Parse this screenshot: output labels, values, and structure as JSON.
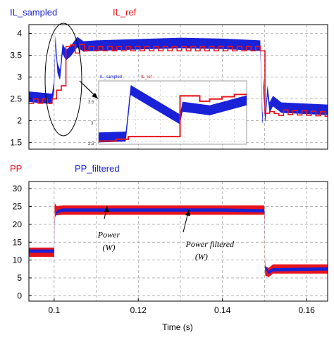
{
  "colors": {
    "blue": "#1a22d8",
    "red": "#e8141c",
    "grid": "#9a9a9a"
  },
  "chart_data": [
    {
      "type": "line",
      "title": "",
      "xlabel": "",
      "ylabel": "",
      "xlim": [
        0.094,
        0.165
      ],
      "ylim": [
        1.35,
        4.2
      ],
      "yticks": [
        "1.5",
        "2",
        "2.5",
        "3",
        "3.5",
        "4"
      ],
      "grid": true,
      "legend": "top-left",
      "series": [
        {
          "name": "IL_sampled",
          "color": "#1a22d8",
          "band": 0.24,
          "x": [
            0.094,
            0.0995,
            0.1,
            0.1003,
            0.1008,
            0.1014,
            0.102,
            0.1028,
            0.104,
            0.1055,
            0.107,
            0.11,
            0.12,
            0.13,
            0.14,
            0.149,
            0.1495,
            0.1497,
            0.1502,
            0.1507,
            0.1512,
            0.152,
            0.154,
            0.165
          ],
          "y": [
            2.55,
            2.5,
            2.8,
            3.85,
            3.2,
            3.05,
            3.65,
            3.5,
            3.6,
            3.8,
            3.7,
            3.72,
            3.75,
            3.78,
            3.76,
            3.72,
            1.9,
            2.9,
            2.05,
            2.7,
            2.3,
            2.45,
            2.3,
            2.25
          ]
        },
        {
          "name": "IL_ref",
          "color": "#e8141c",
          "x": [
            0.094,
            0.0995,
            0.0996,
            0.1018,
            0.102,
            0.1036,
            0.1045,
            0.106,
            0.107,
            0.11,
            0.12,
            0.13,
            0.14,
            0.149,
            0.1498,
            0.15,
            0.151,
            0.152,
            0.154,
            0.165
          ],
          "y": [
            2.45,
            2.45,
            2.75,
            2.75,
            3.75,
            3.75,
            3.55,
            3.7,
            3.65,
            3.65,
            3.65,
            3.65,
            3.65,
            3.65,
            3.65,
            2.1,
            2.3,
            2.1,
            2.2,
            2.15
          ]
        }
      ],
      "inset": {
        "legend": [
          "IL_sampled",
          "IL_ref"
        ],
        "yticks": [
          "3.5",
          "3",
          "2.5"
        ]
      }
    },
    {
      "type": "line",
      "title": "",
      "xlabel": "Time (s)",
      "ylabel": "",
      "xlim": [
        0.094,
        0.165
      ],
      "ylim": [
        -1.5,
        32
      ],
      "xticks": [
        "0.1",
        "0.12",
        "0.14",
        "0.16"
      ],
      "yticks": [
        "0",
        "5",
        "10",
        "15",
        "20",
        "25",
        "30"
      ],
      "grid": true,
      "legend": "top-left",
      "series": [
        {
          "name": "PP",
          "color": "#e8141c",
          "band": 2.6,
          "x": [
            0.094,
            0.1,
            0.1001,
            0.1006,
            0.102,
            0.12,
            0.14,
            0.15,
            0.1501,
            0.151,
            0.152,
            0.165
          ],
          "y": [
            12.2,
            12.2,
            24.8,
            23.8,
            24.0,
            24.0,
            24.0,
            24.0,
            7.0,
            6.5,
            7.5,
            7.5
          ]
        },
        {
          "name": "PP_filtered",
          "color": "#1a22d8",
          "band": 0.9,
          "x": [
            0.094,
            0.1,
            0.1002,
            0.1008,
            0.102,
            0.12,
            0.14,
            0.15,
            0.1502,
            0.151,
            0.152,
            0.165
          ],
          "y": [
            12.5,
            12.5,
            22.5,
            23.6,
            24.0,
            24.0,
            24.0,
            23.8,
            8.0,
            6.5,
            7.3,
            7.5
          ]
        }
      ],
      "annotations": [
        {
          "text": "Power",
          "x": 0.113,
          "y": 16.3
        },
        {
          "text": "(W)",
          "x": 0.113,
          "y": 12.8
        },
        {
          "text": "Power filtered",
          "x": 0.137,
          "y": 13.7
        },
        {
          "text": "(W)",
          "x": 0.135,
          "y": 10.2
        }
      ]
    }
  ]
}
